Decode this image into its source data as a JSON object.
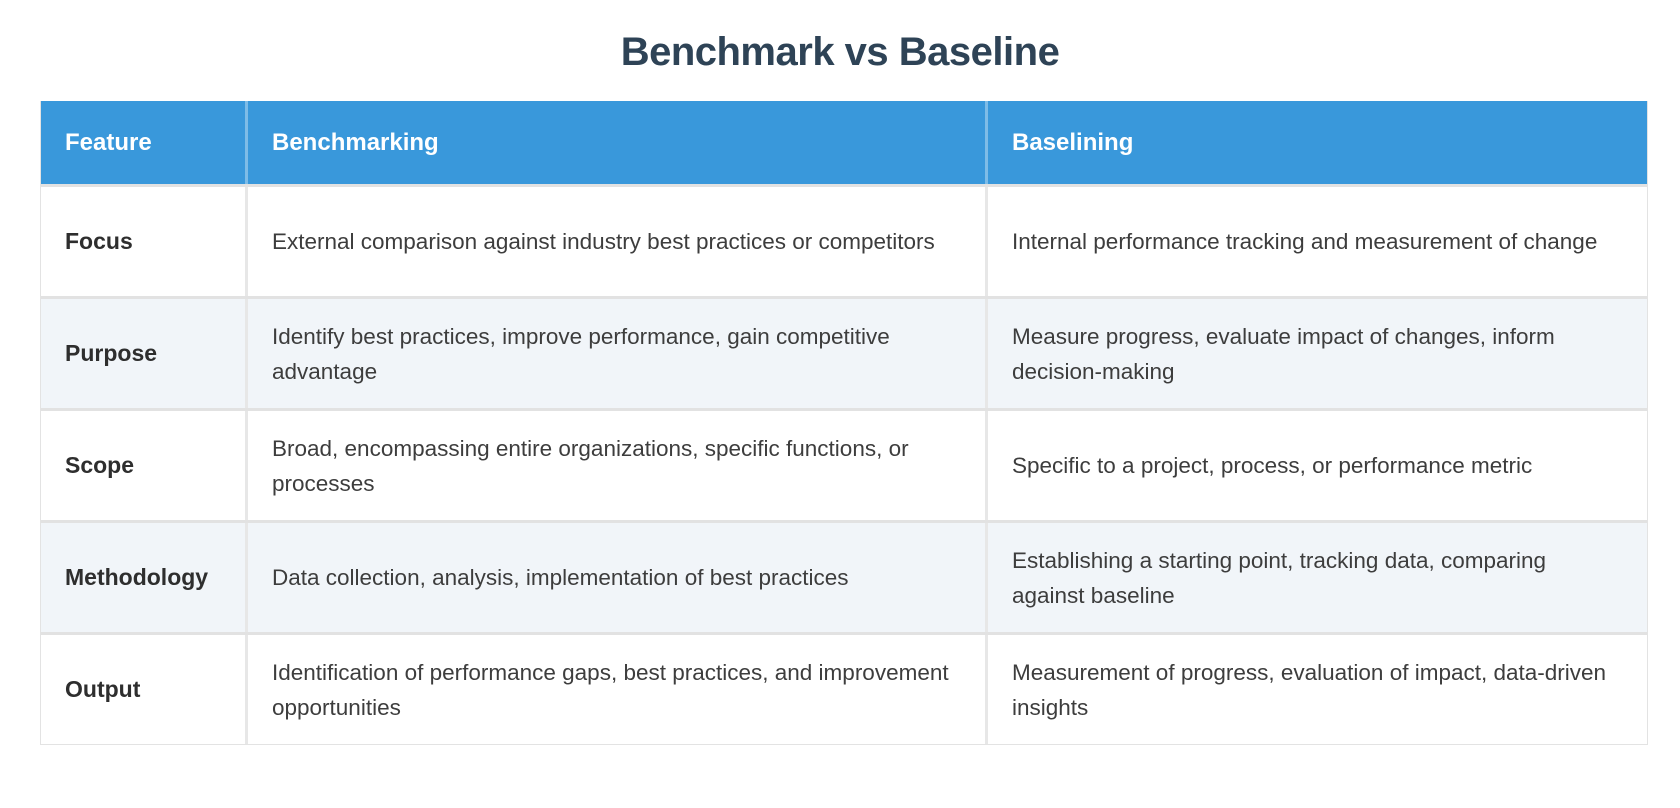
{
  "title": "Benchmark vs Baseline",
  "colors": {
    "header_bg": "#3998db",
    "header_text": "#ffffff",
    "row_bg": "#ffffff",
    "row_alt_bg": "#f1f5f9",
    "border": "#e2e2e2",
    "title_text": "#2e4356",
    "body_text": "#3d3d3d"
  },
  "table": {
    "columns": [
      {
        "label": "Feature"
      },
      {
        "label": "Benchmarking"
      },
      {
        "label": "Baselining"
      }
    ],
    "rows": [
      {
        "feature": "Focus",
        "benchmarking": "External comparison against industry best practices or competitors",
        "baselining": "Internal performance tracking and measurement of change"
      },
      {
        "feature": "Purpose",
        "benchmarking": "Identify best practices, improve performance, gain competitive advantage",
        "baselining": "Measure progress, evaluate impact of changes, inform decision-making"
      },
      {
        "feature": "Scope",
        "benchmarking": "Broad, encompassing entire organizations, specific functions, or processes",
        "baselining": "Specific to a project, process, or performance metric"
      },
      {
        "feature": "Methodology",
        "benchmarking": "Data collection, analysis, implementation of best practices",
        "baselining": "Establishing a starting point, tracking data, comparing against baseline"
      },
      {
        "feature": "Output",
        "benchmarking": "Identification of performance gaps, best practices, and improvement opportunities",
        "baselining": "Measurement of progress, evaluation of impact, data-driven insights"
      }
    ]
  }
}
